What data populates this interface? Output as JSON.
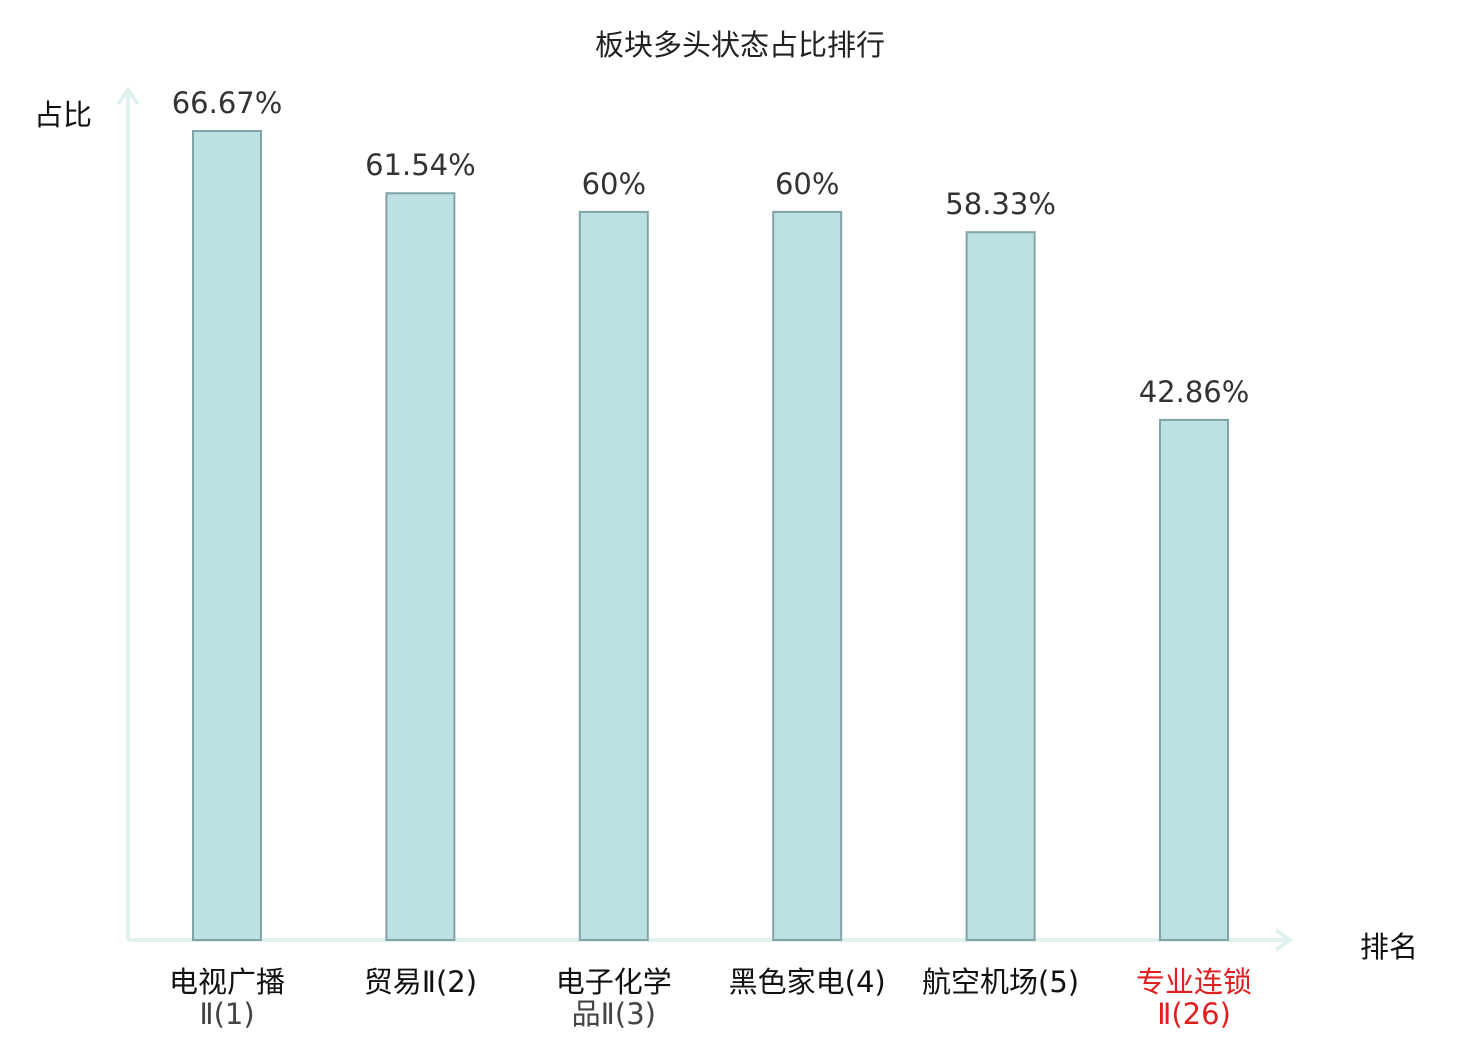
{
  "chart_data": {
    "type": "bar",
    "title": "板块多头状态占比排行",
    "xlabel": "排名",
    "ylabel": "占比",
    "ylim": [
      0,
      66.67
    ],
    "categories": [
      {
        "line1": "电视广播",
        "line2": "Ⅱ(1)"
      },
      {
        "line1": "贸易Ⅱ(2)",
        "line2": ""
      },
      {
        "line1": "电子化学",
        "line2": "品Ⅱ(3)"
      },
      {
        "line1": "黑色家电(4)",
        "line2": ""
      },
      {
        "line1": "航空机场(5)",
        "line2": ""
      },
      {
        "line1": "专业连锁",
        "line2": "Ⅱ(26)"
      }
    ],
    "values": [
      66.67,
      61.54,
      60,
      60,
      58.33,
      42.86
    ],
    "value_labels": [
      "66.67%",
      "61.54%",
      "60%",
      "60%",
      "58.33%",
      "42.86%"
    ],
    "highlight_index": 5,
    "grid": false
  },
  "colors": {
    "bar_fill": "#bde0e3",
    "bar_stroke": "#7fa3a7",
    "axis": "#e0f2ef",
    "value_label": "#333333",
    "highlight": "#e02020"
  }
}
